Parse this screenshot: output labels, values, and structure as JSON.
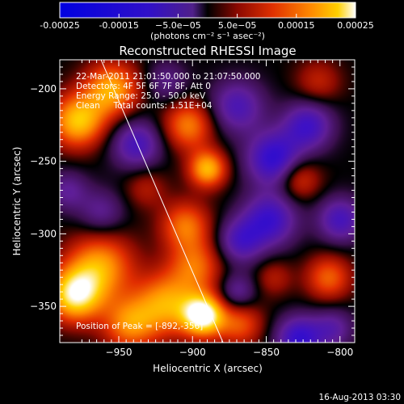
{
  "colorbar": {
    "ticks": [
      "-0.00025",
      "-0.00015",
      "−5.0e−05",
      "5.0e−05",
      "0.00015",
      "0.00025"
    ],
    "tick_values": [
      -0.00025,
      -0.00015,
      -5e-05,
      5e-05,
      0.00015,
      0.00025
    ],
    "range": [
      -0.00025,
      0.00025
    ],
    "units": "(photons cm⁻² s⁻¹ asec⁻²)"
  },
  "chart_data": {
    "type": "heatmap",
    "title": "Reconstructed RHESSI Image",
    "xlabel": "Heliocentric X (arcsec)",
    "ylabel": "Heliocentric Y (arcsec)",
    "xlim": [
      -990,
      -790
    ],
    "ylim": [
      -375,
      -180
    ],
    "xticks": [
      -950,
      -900,
      -850,
      -800
    ],
    "yticks": [
      -200,
      -250,
      -300,
      -350
    ],
    "info_lines": [
      "22-Mar-2011 21:01:50.000 to 21:07:50.000",
      "Detectors: 4F 5F 6F 7F 8F, Att 0",
      "Energy Range: 25.0 - 50.0 keV",
      "Clean     Total counts: 1.51E+04"
    ],
    "peak_text": "Position of Peak = [-892,-356]",
    "peak": {
      "x": -892,
      "y": -356
    },
    "limb_line": [
      {
        "x": -965,
        "y": -173
      },
      {
        "x": -878,
        "y": -378
      }
    ],
    "blobs": [
      {
        "x": -893,
        "y": -356,
        "v": 0.00026,
        "s": 10
      },
      {
        "x": -980,
        "y": -342,
        "v": 0.00022,
        "s": 13
      },
      {
        "x": -963,
        "y": -322,
        "v": 0.00016,
        "s": 16
      },
      {
        "x": -918,
        "y": -348,
        "v": 0.00016,
        "s": 15
      },
      {
        "x": -943,
        "y": -362,
        "v": 0.00014,
        "s": 13
      },
      {
        "x": -898,
        "y": -322,
        "v": 0.00012,
        "s": 13
      },
      {
        "x": -868,
        "y": -362,
        "v": 0.00011,
        "s": 11
      },
      {
        "x": -978,
        "y": -222,
        "v": 0.00019,
        "s": 13
      },
      {
        "x": -955,
        "y": -200,
        "v": 0.00017,
        "s": 13
      },
      {
        "x": -903,
        "y": -225,
        "v": 0.00014,
        "s": 12
      },
      {
        "x": -890,
        "y": -255,
        "v": 0.00018,
        "s": 9
      },
      {
        "x": -905,
        "y": -294,
        "v": 0.00013,
        "s": 12
      },
      {
        "x": -828,
        "y": -262,
        "v": 0.0001,
        "s": 10
      },
      {
        "x": -808,
        "y": -330,
        "v": 0.00012,
        "s": 11
      },
      {
        "x": -932,
        "y": -268,
        "v": 6e-05,
        "s": 10
      },
      {
        "x": -815,
        "y": -195,
        "v": 7e-05,
        "s": 11
      },
      {
        "x": -845,
        "y": -330,
        "v": 6e-05,
        "s": 9
      },
      {
        "x": -938,
        "y": -238,
        "v": -0.00013,
        "s": 12
      },
      {
        "x": -870,
        "y": -212,
        "v": -0.00012,
        "s": 13
      },
      {
        "x": -845,
        "y": -248,
        "v": -0.00017,
        "s": 13
      },
      {
        "x": -848,
        "y": -290,
        "v": -0.00015,
        "s": 13
      },
      {
        "x": -822,
        "y": -225,
        "v": -0.00014,
        "s": 12
      },
      {
        "x": -868,
        "y": -305,
        "v": -0.00012,
        "s": 11
      },
      {
        "x": -828,
        "y": -372,
        "v": -0.00016,
        "s": 11
      },
      {
        "x": -962,
        "y": -285,
        "v": -8e-05,
        "s": 11
      },
      {
        "x": -985,
        "y": -270,
        "v": -8e-05,
        "s": 10
      },
      {
        "x": -800,
        "y": -290,
        "v": -0.00013,
        "s": 11
      },
      {
        "x": -805,
        "y": -365,
        "v": -9e-05,
        "s": 10
      },
      {
        "x": -870,
        "y": -340,
        "v": -9e-05,
        "s": 9
      },
      {
        "x": -918,
        "y": -195,
        "v": -7e-05,
        "s": 10
      }
    ]
  },
  "footer": {
    "date": "16-Aug-2013 03:30"
  }
}
